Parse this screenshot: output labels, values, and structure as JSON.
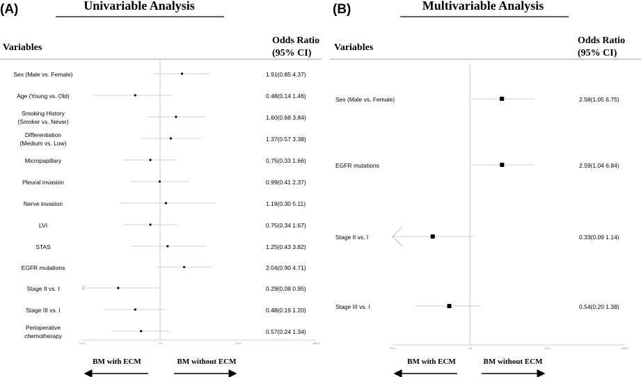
{
  "chart_data": [
    {
      "type": "forest",
      "panel_label": "(A)",
      "title": "Univariable Analysis",
      "variables_header": "Variables",
      "or_header_line1": "Odds Ratio",
      "or_header_line2": "(95% CI)",
      "x_scale": "log",
      "xlim": [
        0.1,
        100
      ],
      "x_ticks": [
        "0.10",
        "1.0",
        "10.0",
        "100.0"
      ],
      "reference_line": 1,
      "left_arrow_label": "BM with ECM",
      "right_arrow_label": "BM without ECM",
      "rows": [
        {
          "label": [
            "Sex (Male vs. Female)"
          ],
          "or": 1.91,
          "lo": 0.85,
          "hi": 4.37,
          "text": "1.91(0.85 4.37)"
        },
        {
          "label": [
            "Age (Young vs. Old)"
          ],
          "or": 0.48,
          "lo": 0.14,
          "hi": 1.46,
          "text": "0.48(0.14 1.46)"
        },
        {
          "label": [
            "Smoking History",
            "(Smoker vs. Never)"
          ],
          "or": 1.6,
          "lo": 0.68,
          "hi": 3.84,
          "text": "1.60(0.68 3.84)"
        },
        {
          "label": [
            "Differentiation",
            "(Medium vs. Low)"
          ],
          "or": 1.37,
          "lo": 0.57,
          "hi": 3.38,
          "text": "1.37(0.57 3.38)"
        },
        {
          "label": [
            "Micropapillary"
          ],
          "or": 0.75,
          "lo": 0.33,
          "hi": 1.66,
          "text": "0.75(0.33 1.66)"
        },
        {
          "label": [
            "Pleural invasion"
          ],
          "or": 0.99,
          "lo": 0.41,
          "hi": 2.37,
          "text": "0.99(0.41 2.37)"
        },
        {
          "label": [
            "Nerve invasion"
          ],
          "or": 1.19,
          "lo": 0.3,
          "hi": 5.11,
          "text": "1.19(0.30 5.11)"
        },
        {
          "label": [
            "LVI"
          ],
          "or": 0.75,
          "lo": 0.34,
          "hi": 1.67,
          "text": "0.75(0.34 1.67)"
        },
        {
          "label": [
            "STAS"
          ],
          "or": 1.25,
          "lo": 0.43,
          "hi": 3.82,
          "text": "1.25(0.43 3.82)"
        },
        {
          "label": [
            "EGFR mutations"
          ],
          "or": 2.04,
          "lo": 0.9,
          "hi": 4.71,
          "text": "2.04(0.90 4.71)"
        },
        {
          "label": [
            "Stage II vs. I"
          ],
          "or": 0.29,
          "lo": 0.08,
          "hi": 0.95,
          "text": "0.29(0.08 0.95)"
        },
        {
          "label": [
            "Stage III vs. I"
          ],
          "or": 0.48,
          "lo": 0.19,
          "hi": 1.2,
          "text": "0.48(0.19 1.20)"
        },
        {
          "label": [
            "Perioperative",
            "chemotherapy"
          ],
          "or": 0.57,
          "lo": 0.24,
          "hi": 1.34,
          "text": "0.57(0.24 1.34)"
        }
      ]
    },
    {
      "type": "forest",
      "panel_label": "(B)",
      "title": "Multivariable Analysis",
      "variables_header": "Variables",
      "or_header_line1": "Odds Ratio",
      "or_header_line2": "(95% CI)",
      "x_scale": "log",
      "xlim": [
        0.1,
        100
      ],
      "x_ticks": [
        "0.10",
        "1.0",
        "10.0",
        "100.0"
      ],
      "reference_line": 1,
      "left_arrow_label": "BM with ECM",
      "right_arrow_label": "BM without ECM",
      "rows": [
        {
          "label": [
            "Sex (Male vs. Female)"
          ],
          "or": 2.58,
          "lo": 1.05,
          "hi": 6.75,
          "text": "2.58(1.05 6.75)"
        },
        {
          "label": [
            "EGFR mutations"
          ],
          "or": 2.59,
          "lo": 1.04,
          "hi": 6.84,
          "text": "2.59(1.04 6.84)"
        },
        {
          "label": [
            "Stage II vs. I"
          ],
          "or": 0.33,
          "lo": 0.09,
          "hi": 1.14,
          "text": "0.33(0.09 1.14)"
        },
        {
          "label": [
            "Stage III vs. I"
          ],
          "or": 0.54,
          "lo": 0.2,
          "hi": 1.38,
          "text": "0.54(0.20 1.38)"
        }
      ]
    }
  ]
}
